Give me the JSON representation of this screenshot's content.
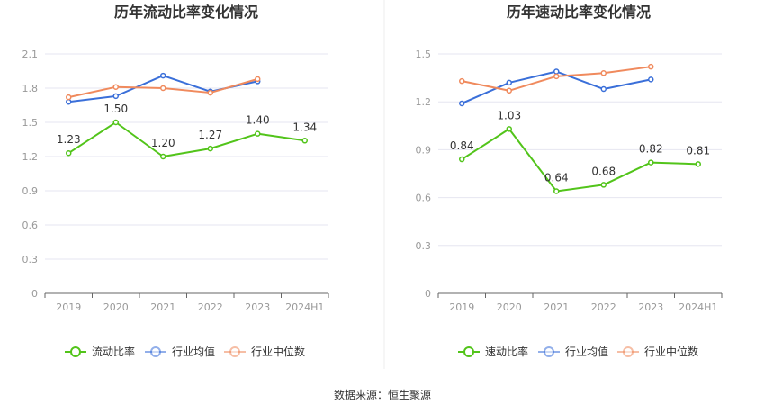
{
  "chart_data": [
    {
      "type": "line",
      "title": "历年流动比率变化情况",
      "categories": [
        "2019",
        "2020",
        "2021",
        "2022",
        "2023",
        "2024H1"
      ],
      "ylim": [
        0,
        2.1
      ],
      "yticks": [
        "0",
        "0.3",
        "0.6",
        "0.9",
        "1.2",
        "1.5",
        "1.8",
        "2.1"
      ],
      "grid": true,
      "legend_position": "bottom",
      "series": [
        {
          "name": "流动比率",
          "color": "#52c41a",
          "values": [
            1.23,
            1.5,
            1.2,
            1.27,
            1.4,
            1.34
          ],
          "labels": [
            "1.23",
            "1.50",
            "1.20",
            "1.27",
            "1.40",
            "1.34"
          ]
        },
        {
          "name": "行业均值",
          "color": "#3a6fd9",
          "values": [
            1.68,
            1.73,
            1.91,
            1.77,
            1.86,
            null
          ]
        },
        {
          "name": "行业中位数",
          "color": "#f08a5d",
          "values": [
            1.72,
            1.81,
            1.8,
            1.76,
            1.88,
            null
          ]
        }
      ]
    },
    {
      "type": "line",
      "title": "历年速动比率变化情况",
      "categories": [
        "2019",
        "2020",
        "2021",
        "2022",
        "2023",
        "2024H1"
      ],
      "ylim": [
        0,
        1.5
      ],
      "yticks": [
        "0",
        "0.3",
        "0.6",
        "0.9",
        "1.2",
        "1.5"
      ],
      "grid": true,
      "legend_position": "bottom",
      "series": [
        {
          "name": "速动比率",
          "color": "#52c41a",
          "values": [
            0.84,
            1.03,
            0.64,
            0.68,
            0.82,
            0.81
          ],
          "labels": [
            "0.84",
            "1.03",
            "0.64",
            "0.68",
            "0.82",
            "0.81"
          ]
        },
        {
          "name": "行业均值",
          "color": "#3a6fd9",
          "values": [
            1.19,
            1.32,
            1.39,
            1.28,
            1.34,
            null
          ]
        },
        {
          "name": "行业中位数",
          "color": "#f08a5d",
          "values": [
            1.33,
            1.27,
            1.36,
            1.38,
            1.42,
            null
          ]
        }
      ]
    }
  ],
  "footer": {
    "source": "数据来源：恒生聚源"
  }
}
